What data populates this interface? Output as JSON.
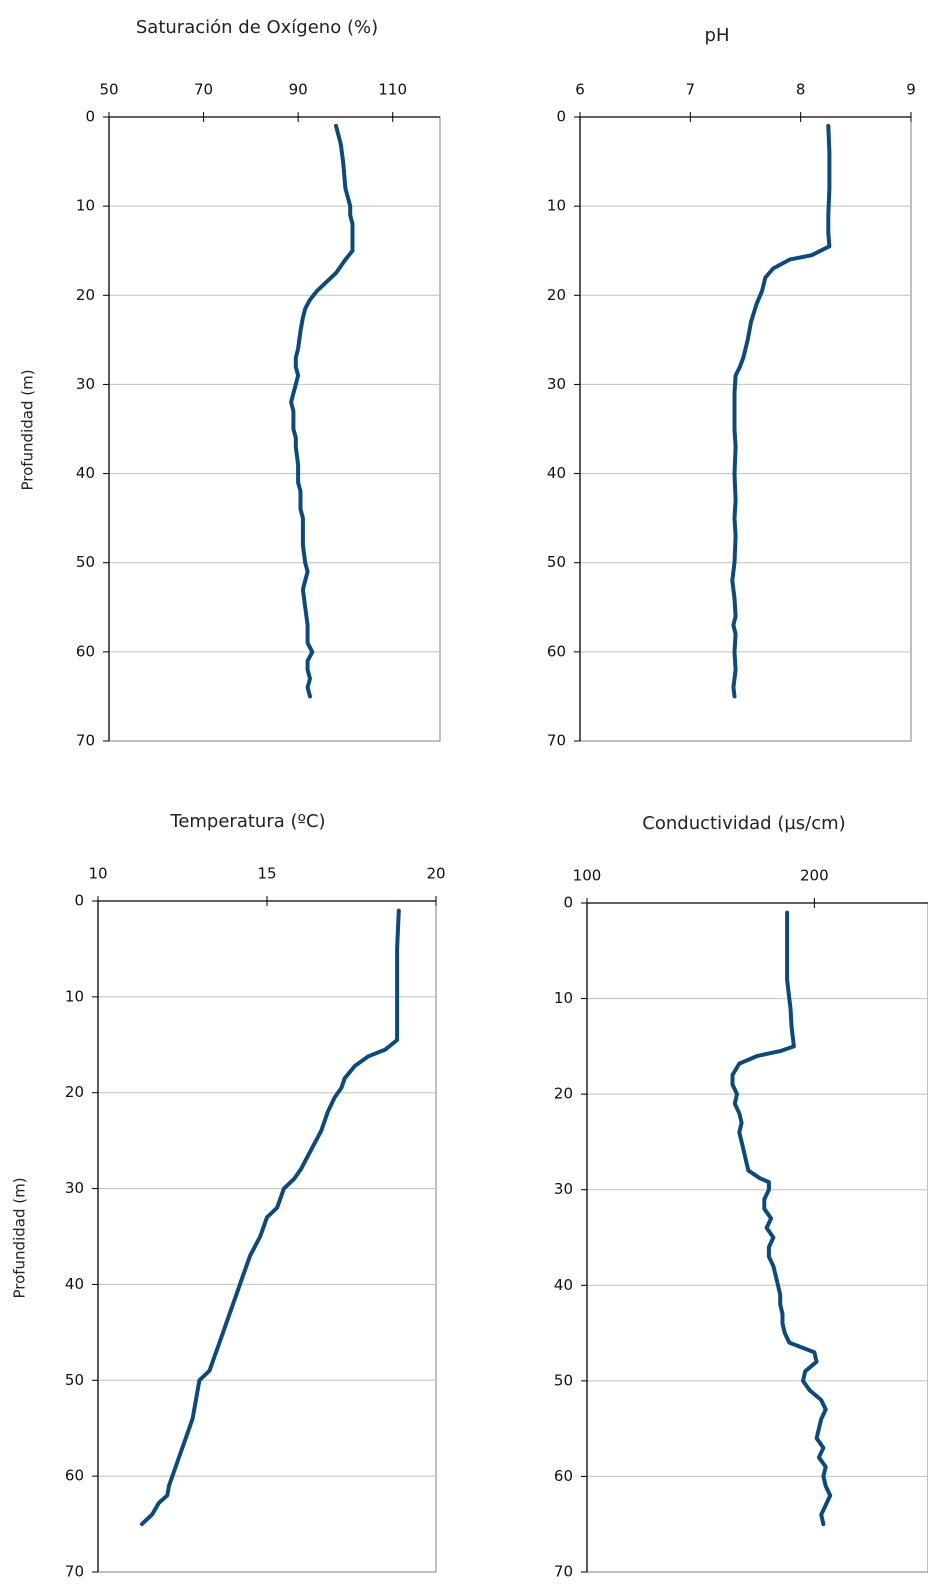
{
  "colors": {
    "series": "#0d4a7a"
  },
  "chart_data": [
    {
      "type": "line",
      "title": "Saturación de Oxígeno (%)",
      "xlabel": "",
      "ylabel": "Profundidad (m)",
      "xlim": [
        50,
        120
      ],
      "ylim": [
        0,
        70
      ],
      "x_ticks": [
        "50",
        "70",
        "90",
        "110"
      ],
      "y_ticks": [
        "0",
        "10",
        "20",
        "30",
        "40",
        "50",
        "60",
        "70"
      ],
      "grid": true,
      "series": [
        {
          "points": [
            [
              98,
              1
            ],
            [
              99,
              3
            ],
            [
              99.5,
              5
            ],
            [
              100,
              8
            ],
            [
              101,
              10
            ],
            [
              101,
              11
            ],
            [
              101.5,
              12
            ],
            [
              101.5,
              14
            ],
            [
              101.5,
              15
            ],
            [
              100,
              16
            ],
            [
              98,
              17.5
            ],
            [
              96,
              18.5
            ],
            [
              94,
              19.5
            ],
            [
              92.5,
              20.5
            ],
            [
              91.5,
              21.5
            ],
            [
              91,
              22.5
            ],
            [
              90.5,
              24
            ],
            [
              90,
              26
            ],
            [
              89.5,
              27
            ],
            [
              89.5,
              28
            ],
            [
              90,
              29
            ],
            [
              89.5,
              30
            ],
            [
              89,
              31
            ],
            [
              88.5,
              32
            ],
            [
              89,
              33
            ],
            [
              89,
              34
            ],
            [
              89,
              35
            ],
            [
              89.5,
              36
            ],
            [
              89.5,
              37
            ],
            [
              90,
              39
            ],
            [
              90,
              40
            ],
            [
              90,
              41
            ],
            [
              90.5,
              42
            ],
            [
              90.5,
              44
            ],
            [
              91,
              45
            ],
            [
              91,
              46
            ],
            [
              91,
              48
            ],
            [
              91.5,
              50
            ],
            [
              92,
              51
            ],
            [
              91.5,
              52
            ],
            [
              91,
              53
            ],
            [
              91.5,
              55
            ],
            [
              92,
              57
            ],
            [
              92,
              59
            ],
            [
              93,
              60
            ],
            [
              92,
              61
            ],
            [
              92,
              62
            ],
            [
              92.5,
              63
            ],
            [
              92,
              64
            ],
            [
              92.5,
              65
            ]
          ]
        }
      ]
    },
    {
      "type": "line",
      "title": "pH",
      "xlabel": "",
      "ylabel": "",
      "xlim": [
        6,
        9
      ],
      "ylim": [
        0,
        70
      ],
      "x_ticks": [
        "6",
        "7",
        "8",
        "9"
      ],
      "y_ticks": [
        "0",
        "10",
        "20",
        "30",
        "40",
        "50",
        "60",
        "70"
      ],
      "grid": true,
      "series": [
        {
          "points": [
            [
              8.25,
              1
            ],
            [
              8.26,
              4
            ],
            [
              8.26,
              8
            ],
            [
              8.25,
              11
            ],
            [
              8.25,
              13
            ],
            [
              8.26,
              14.5
            ],
            [
              8.1,
              15.5
            ],
            [
              7.9,
              16
            ],
            [
              7.75,
              17
            ],
            [
              7.68,
              18
            ],
            [
              7.65,
              19.5
            ],
            [
              7.6,
              21
            ],
            [
              7.55,
              23
            ],
            [
              7.52,
              25
            ],
            [
              7.5,
              26
            ],
            [
              7.48,
              27
            ],
            [
              7.45,
              28
            ],
            [
              7.41,
              29
            ],
            [
              7.4,
              31
            ],
            [
              7.4,
              35
            ],
            [
              7.41,
              37
            ],
            [
              7.4,
              40
            ],
            [
              7.41,
              43
            ],
            [
              7.4,
              45
            ],
            [
              7.41,
              47
            ],
            [
              7.4,
              50
            ],
            [
              7.38,
              52
            ],
            [
              7.4,
              54
            ],
            [
              7.41,
              56
            ],
            [
              7.39,
              57
            ],
            [
              7.41,
              58
            ],
            [
              7.4,
              60
            ],
            [
              7.41,
              62
            ],
            [
              7.39,
              64
            ],
            [
              7.4,
              65
            ]
          ]
        }
      ]
    },
    {
      "type": "line",
      "title": "Temperatura (ºC)",
      "xlabel": "",
      "ylabel": "Profundidad (m)",
      "xlim": [
        10,
        20
      ],
      "ylim": [
        0,
        70
      ],
      "x_ticks": [
        "10",
        "15",
        "20"
      ],
      "y_ticks": [
        "0",
        "10",
        "20",
        "30",
        "40",
        "50",
        "60",
        "70"
      ],
      "grid": true,
      "series": [
        {
          "points": [
            [
              18.9,
              1
            ],
            [
              18.85,
              5
            ],
            [
              18.85,
              10
            ],
            [
              18.85,
              14.5
            ],
            [
              18.5,
              15.5
            ],
            [
              18,
              16.2
            ],
            [
              17.6,
              17.2
            ],
            [
              17.3,
              18.5
            ],
            [
              17.2,
              19.5
            ],
            [
              17.0,
              20.5
            ],
            [
              16.8,
              22
            ],
            [
              16.6,
              24
            ],
            [
              16.3,
              26
            ],
            [
              16.0,
              28
            ],
            [
              15.8,
              29
            ],
            [
              15.5,
              30
            ],
            [
              15.4,
              31
            ],
            [
              15.3,
              32
            ],
            [
              15.0,
              33
            ],
            [
              14.8,
              35
            ],
            [
              14.5,
              37
            ],
            [
              14.3,
              39
            ],
            [
              14.1,
              41
            ],
            [
              13.9,
              43
            ],
            [
              13.7,
              45
            ],
            [
              13.5,
              47
            ],
            [
              13.3,
              49
            ],
            [
              13.0,
              50
            ],
            [
              12.9,
              52
            ],
            [
              12.8,
              54
            ],
            [
              12.6,
              56
            ],
            [
              12.4,
              58
            ],
            [
              12.2,
              60
            ],
            [
              12.1,
              61
            ],
            [
              12.05,
              62
            ],
            [
              11.8,
              62.8
            ],
            [
              11.6,
              64
            ],
            [
              11.3,
              65
            ]
          ]
        }
      ]
    },
    {
      "type": "line",
      "title": "Conductividad (µs/cm)",
      "xlabel": "",
      "ylabel": "",
      "xlim": [
        100,
        250
      ],
      "ylim": [
        0,
        70
      ],
      "x_ticks": [
        "100",
        "200"
      ],
      "y_ticks": [
        "0",
        "10",
        "20",
        "30",
        "40",
        "50",
        "60",
        "70"
      ],
      "grid": true,
      "series": [
        {
          "points": [
            [
              188,
              1
            ],
            [
              188,
              5
            ],
            [
              188,
              8
            ],
            [
              189,
              10
            ],
            [
              189.5,
              11
            ],
            [
              190,
              13
            ],
            [
              190.5,
              14
            ],
            [
              191,
              15
            ],
            [
              185,
              15.5
            ],
            [
              175,
              16
            ],
            [
              167,
              16.8
            ],
            [
              164,
              18
            ],
            [
              164,
              19
            ],
            [
              166,
              20
            ],
            [
              165,
              21
            ],
            [
              167,
              22
            ],
            [
              168,
              23
            ],
            [
              167,
              24
            ],
            [
              168,
              25
            ],
            [
              169,
              26
            ],
            [
              170,
              27
            ],
            [
              171,
              28
            ],
            [
              176,
              28.8
            ],
            [
              180,
              29.2
            ],
            [
              180,
              30
            ],
            [
              178,
              31
            ],
            [
              178,
              32
            ],
            [
              181,
              33
            ],
            [
              179,
              34
            ],
            [
              182,
              35
            ],
            [
              180,
              36
            ],
            [
              180,
              37
            ],
            [
              182,
              38
            ],
            [
              183,
              39
            ],
            [
              184,
              40
            ],
            [
              185,
              41
            ],
            [
              185,
              42
            ],
            [
              186,
              43
            ],
            [
              186,
              44
            ],
            [
              187,
              45
            ],
            [
              189,
              46
            ],
            [
              200,
              47
            ],
            [
              201,
              48
            ],
            [
              196,
              49
            ],
            [
              195,
              50
            ],
            [
              198,
              51
            ],
            [
              203,
              52
            ],
            [
              205,
              53
            ],
            [
              203,
              54
            ],
            [
              202,
              55
            ],
            [
              201,
              56
            ],
            [
              204,
              57
            ],
            [
              202,
              58
            ],
            [
              205,
              59
            ],
            [
              204,
              60
            ],
            [
              205,
              61
            ],
            [
              207,
              62
            ],
            [
              205,
              63
            ],
            [
              203,
              64
            ],
            [
              204,
              65
            ]
          ]
        }
      ]
    }
  ]
}
